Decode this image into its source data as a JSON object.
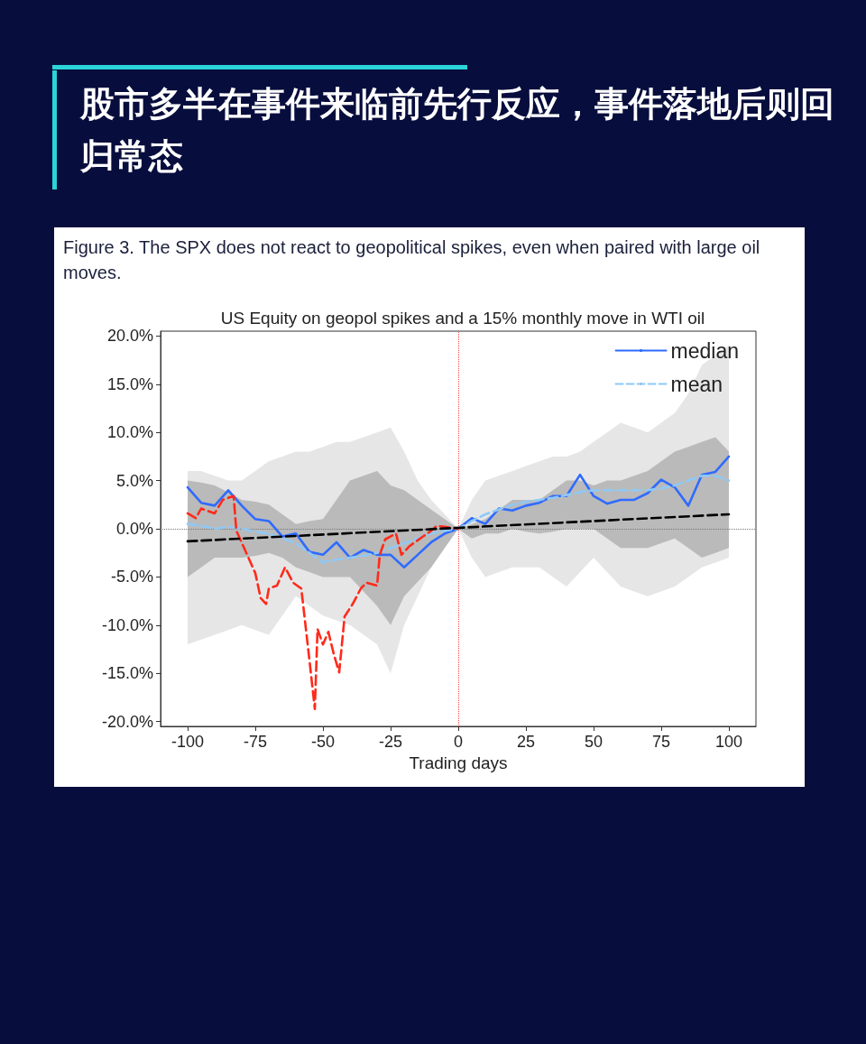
{
  "chart_data": {
    "type": "line",
    "title": "股市多半在事件来临前先行反应，事件落地后则回归常态",
    "subtitle": "Figure 3. The SPX does not react to geopolitical spikes, even when paired with large oil moves.",
    "annotations": [
      "US Equity on geopol spikes and a 15% monthly move in WTI oil"
    ],
    "xlabel": "Trading days",
    "xlim": [
      -110,
      110
    ],
    "xticks": [
      -100,
      -75,
      -50,
      -25,
      0,
      25,
      50,
      75,
      100
    ],
    "ylim": [
      -20.5,
      20.5
    ],
    "yticks": [
      {
        "value": -20,
        "label": "-20.0%"
      },
      {
        "value": -15,
        "label": "-15.0%"
      },
      {
        "value": -10,
        "label": "-10.0%"
      },
      {
        "value": -5,
        "label": "-5.0%"
      },
      {
        "value": 0,
        "label": "0.0%"
      },
      {
        "value": 5,
        "label": "5.0%"
      },
      {
        "value": 10,
        "label": "10.0%"
      },
      {
        "value": 15,
        "label": "15.0%"
      },
      {
        "value": 20,
        "label": "20.0%"
      }
    ],
    "grid": false,
    "legend": "top right",
    "marker": "none",
    "series": [
      {
        "name": "median",
        "color": "#2f6bff",
        "line_style": "solid",
        "x": [
          -100,
          -95,
          -90,
          -85,
          -80,
          -75,
          -70,
          -65,
          -60,
          -55,
          -50,
          -45,
          -40,
          -35,
          -30,
          -25,
          -20,
          -15,
          -10,
          -5,
          0,
          5,
          10,
          15,
          20,
          25,
          30,
          35,
          40,
          45,
          50,
          55,
          60,
          65,
          70,
          75,
          80,
          85,
          90,
          95,
          100
        ],
        "values": [
          4.3,
          2.7,
          2.4,
          4.0,
          2.4,
          1.0,
          0.8,
          -0.8,
          -0.5,
          -2.4,
          -2.7,
          -1.4,
          -3.0,
          -2.2,
          -2.7,
          -2.7,
          -4.0,
          -2.7,
          -1.4,
          -0.5,
          0,
          1.1,
          0.5,
          2.1,
          1.9,
          2.4,
          2.7,
          3.4,
          3.4,
          5.6,
          3.4,
          2.6,
          3.0,
          3.0,
          3.7,
          5.1,
          4.3,
          2.4,
          5.6,
          5.9,
          7.5
        ],
        "lower": [
          -5,
          -4,
          -3,
          -3,
          -3,
          -2.8,
          -2.5,
          -3,
          -4,
          -4.5,
          -5,
          -5,
          -5,
          -6.5,
          -8,
          -10,
          -7,
          -5.5,
          -4,
          -2,
          0,
          -1,
          -0.5,
          -0.5,
          0,
          -0.3,
          -0.5,
          -0.3,
          0,
          0,
          0,
          -1,
          -2,
          -2,
          -2,
          -1.5,
          -1,
          -2,
          -3,
          -2.5,
          -2
        ],
        "upper": [
          5,
          4.8,
          4.5,
          3.8,
          3,
          2.8,
          2.5,
          1.5,
          0.5,
          0.8,
          1,
          3,
          5,
          5.5,
          6,
          4.5,
          4,
          3,
          2,
          1,
          0,
          0.5,
          1,
          2,
          3,
          3,
          3,
          4,
          5,
          5,
          4.5,
          5,
          5,
          5.5,
          6,
          7,
          8,
          8.5,
          9,
          9.5,
          8
        ]
      },
      {
        "name": "mean",
        "color": "#8ec9f7",
        "line_style": "dashed",
        "x": [
          -100,
          -95,
          -90,
          -85,
          -80,
          -75,
          -70,
          -65,
          -60,
          -55,
          -50,
          -45,
          -40,
          -35,
          -30,
          -25,
          -20,
          -15,
          -10,
          -5,
          0,
          5,
          10,
          15,
          20,
          25,
          30,
          35,
          40,
          45,
          50,
          55,
          60,
          65,
          70,
          75,
          80,
          85,
          90,
          95,
          100
        ],
        "values": [
          0.5,
          0.3,
          0,
          0.2,
          0,
          -0.3,
          -0.5,
          -1,
          -1.5,
          -2.5,
          -3.5,
          -3.2,
          -3,
          -2.8,
          -2.5,
          -2,
          -1.5,
          -1,
          -0.5,
          -0.2,
          0,
          0.8,
          1.5,
          2,
          2.5,
          2.8,
          3,
          3.2,
          3.5,
          3.8,
          4,
          4,
          4,
          4,
          4,
          4.2,
          4.5,
          5,
          5.5,
          5.5,
          5.0
        ],
        "lower": [
          -12,
          -11.5,
          -11,
          -10.5,
          -10,
          -10.5,
          -11,
          -9,
          -7,
          -8,
          -9,
          -9.5,
          -10,
          -11,
          -12,
          -15,
          -10,
          -7,
          -4,
          -2,
          0,
          -3,
          -5,
          -4.5,
          -4,
          -4,
          -4,
          -5,
          -6,
          -4.5,
          -3,
          -4.5,
          -6,
          -6.5,
          -7,
          -6.5,
          -6,
          -5,
          -4,
          -3.5,
          -3
        ],
        "upper": [
          6,
          6,
          5.5,
          5,
          5,
          6,
          7,
          7.5,
          8,
          8,
          8.5,
          9,
          9,
          9.5,
          10,
          10.5,
          8,
          5,
          3,
          1.5,
          0,
          3,
          5,
          5.5,
          6,
          6.5,
          7,
          7.5,
          7.5,
          8,
          9,
          10,
          11,
          10.5,
          10,
          11,
          12,
          14,
          17,
          18,
          19
        ]
      },
      {
        "color": "#ff2a1a",
        "line_style": "dashed",
        "x": [
          -100,
          -97,
          -95,
          -90,
          -87,
          -83,
          -82,
          -78,
          -75,
          -73,
          -71,
          -70,
          -67,
          -64,
          -61,
          -58,
          -55,
          -53,
          -52,
          -50,
          -48,
          -46,
          -44,
          -42,
          -39,
          -36,
          -34,
          -30,
          -29,
          -27,
          -23,
          -21,
          -18,
          -13,
          -10,
          -8,
          -5,
          0
        ],
        "values": [
          1.6,
          1.1,
          2.1,
          1.6,
          3.0,
          3.4,
          -0.2,
          -2.7,
          -4.6,
          -7.2,
          -7.8,
          -6.2,
          -5.9,
          -4.0,
          -5.6,
          -6.2,
          -13.6,
          -18.7,
          -10.4,
          -12,
          -10.7,
          -13,
          -14.9,
          -9.1,
          -7.8,
          -6.2,
          -5.6,
          -5.9,
          -2.7,
          -1.1,
          -0.5,
          -2.7,
          -1.8,
          -0.8,
          -0.2,
          0.3,
          0.2,
          0
        ]
      },
      {
        "color": "#000000",
        "line_style": "dashed",
        "x": [
          -100,
          100
        ],
        "values": [
          -1.3,
          1.5
        ]
      }
    ],
    "ref_lines": [
      {
        "axis": "y",
        "value": 0,
        "color": "#777777",
        "line_style": "dotted"
      },
      {
        "axis": "x",
        "value": 0,
        "color": "#ff4444",
        "line_style": "dotted"
      }
    ]
  }
}
